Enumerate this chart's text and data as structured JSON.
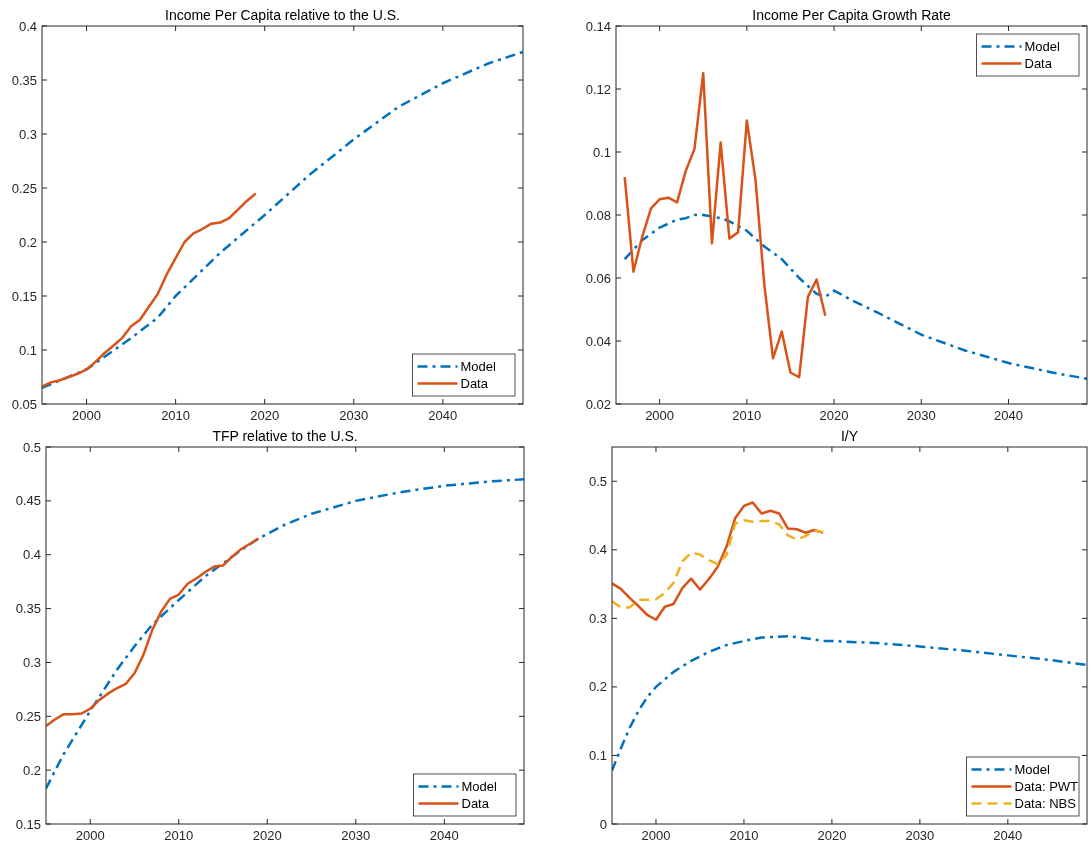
{
  "chart_data": [
    {
      "type": "line",
      "title": "Income Per Capita relative to the U.S.",
      "xlim": [
        1995,
        2049
      ],
      "xticks": [
        2000,
        2010,
        2020,
        2030,
        2040
      ],
      "ylim": [
        0.05,
        0.4
      ],
      "yticks": [
        0.05,
        0.1,
        0.15,
        0.2,
        0.25,
        0.3,
        0.35,
        0.4
      ],
      "legend": "bottom right",
      "series": [
        {
          "name": "Model",
          "color": "#0072bd",
          "line_style": "dashdot",
          "x": [
            1995,
            2000,
            2005,
            2008,
            2010,
            2015,
            2020,
            2025,
            2030,
            2035,
            2040,
            2045,
            2049
          ],
          "values": [
            0.065,
            0.082,
            0.111,
            0.13,
            0.15,
            0.19,
            0.225,
            0.262,
            0.295,
            0.325,
            0.347,
            0.365,
            0.376
          ]
        },
        {
          "name": "Data",
          "color": "#d95319",
          "line_style": "solid",
          "x": [
            1995,
            1996,
            1997,
            1998,
            1999,
            2000,
            2001,
            2002,
            2003,
            2004,
            2005,
            2006,
            2007,
            2008,
            2009,
            2010,
            2011,
            2012,
            2013,
            2014,
            2015,
            2016,
            2017,
            2018,
            2019
          ],
          "values": [
            0.066,
            0.07,
            0.072,
            0.075,
            0.078,
            0.082,
            0.089,
            0.097,
            0.104,
            0.111,
            0.122,
            0.128,
            0.14,
            0.152,
            0.17,
            0.185,
            0.2,
            0.208,
            0.212,
            0.217,
            0.218,
            0.222,
            0.23,
            0.238,
            0.245
          ]
        }
      ]
    },
    {
      "type": "line",
      "title": "Income Per Capita Growth Rate",
      "xlim": [
        1995,
        2049
      ],
      "xticks": [
        2000,
        2010,
        2020,
        2030,
        2040
      ],
      "ylim": [
        0.02,
        0.14
      ],
      "yticks": [
        0.02,
        0.04,
        0.06,
        0.08,
        0.1,
        0.12,
        0.14
      ],
      "legend": "top right",
      "series": [
        {
          "name": "Model",
          "color": "#0072bd",
          "line_style": "dashdot",
          "x": [
            1996,
            1998,
            2000,
            2002,
            2003,
            2004,
            2005,
            2007,
            2008,
            2010,
            2012,
            2014,
            2016,
            2018,
            2019,
            2020,
            2022,
            2025,
            2030,
            2035,
            2040,
            2045,
            2049
          ],
          "values": [
            0.066,
            0.072,
            0.076,
            0.0785,
            0.079,
            0.08,
            0.08,
            0.079,
            0.078,
            0.075,
            0.07,
            0.066,
            0.06,
            0.055,
            0.054,
            0.056,
            0.053,
            0.049,
            0.042,
            0.037,
            0.033,
            0.03,
            0.028
          ]
        },
        {
          "name": "Data",
          "color": "#d95319",
          "line_style": "solid",
          "x": [
            1996,
            1997,
            1998,
            1999,
            2000,
            2001,
            2002,
            2003,
            2004,
            2005,
            2006,
            2007,
            2008,
            2009,
            2010,
            2011,
            2012,
            2013,
            2014,
            2015,
            2016,
            2017,
            2018,
            2019
          ],
          "values": [
            0.092,
            0.062,
            0.073,
            0.082,
            0.085,
            0.0855,
            0.084,
            0.094,
            0.101,
            0.125,
            0.071,
            0.103,
            0.0725,
            0.0745,
            0.11,
            0.091,
            0.058,
            0.0345,
            0.043,
            0.03,
            0.0285,
            0.054,
            0.0595,
            0.048
          ]
        }
      ]
    },
    {
      "type": "line",
      "title": "TFP relative to the U.S.",
      "xlim": [
        1995,
        2049
      ],
      "xticks": [
        2000,
        2010,
        2020,
        2030,
        2040
      ],
      "ylim": [
        0.15,
        0.5
      ],
      "yticks": [
        0.15,
        0.2,
        0.25,
        0.3,
        0.35,
        0.4,
        0.45,
        0.5
      ],
      "legend": "bottom right",
      "series": [
        {
          "name": "Model",
          "color": "#0072bd",
          "line_style": "dashdot",
          "x": [
            1995,
            1997,
            2000,
            2003,
            2005,
            2007,
            2010,
            2013,
            2015,
            2017,
            2019,
            2022,
            2025,
            2030,
            2035,
            2040,
            2045,
            2049
          ],
          "values": [
            0.183,
            0.215,
            0.255,
            0.293,
            0.315,
            0.335,
            0.358,
            0.38,
            0.392,
            0.404,
            0.415,
            0.428,
            0.438,
            0.45,
            0.458,
            0.464,
            0.468,
            0.47
          ]
        },
        {
          "name": "Data",
          "color": "#d95319",
          "line_style": "solid",
          "x": [
            1995,
            1996,
            1997,
            1998,
            1999,
            2000,
            2001,
            2002,
            2003,
            2004,
            2005,
            2006,
            2007,
            2008,
            2009,
            2010,
            2011,
            2012,
            2013,
            2014,
            2015,
            2016,
            2017,
            2018,
            2019
          ],
          "values": [
            0.241,
            0.247,
            0.252,
            0.252,
            0.2525,
            0.257,
            0.265,
            0.271,
            0.276,
            0.28,
            0.29,
            0.307,
            0.33,
            0.347,
            0.359,
            0.363,
            0.373,
            0.378,
            0.384,
            0.389,
            0.39,
            0.398,
            0.405,
            0.41,
            0.415
          ]
        }
      ]
    },
    {
      "type": "line",
      "title": "I/Y",
      "xlim": [
        1995,
        2049
      ],
      "xticks": [
        2000,
        2010,
        2020,
        2030,
        2040
      ],
      "ylim": [
        0,
        0.55
      ],
      "yticks": [
        0,
        0.1,
        0.2,
        0.3,
        0.4,
        0.5
      ],
      "legend": "bottom right",
      "series": [
        {
          "name": "Model",
          "color": "#0072bd",
          "line_style": "dashdot",
          "x": [
            1995,
            1996,
            1997,
            1998,
            1999,
            2000,
            2002,
            2004,
            2006,
            2008,
            2010,
            2012,
            2015,
            2017,
            2019,
            2020,
            2025,
            2030,
            2035,
            2040,
            2045,
            2049
          ],
          "values": [
            0.078,
            0.11,
            0.14,
            0.165,
            0.185,
            0.2,
            0.222,
            0.238,
            0.251,
            0.261,
            0.267,
            0.272,
            0.274,
            0.271,
            0.267,
            0.267,
            0.264,
            0.259,
            0.253,
            0.246,
            0.239,
            0.232
          ]
        },
        {
          "name": "Data: PWT",
          "color": "#d95319",
          "line_style": "solid",
          "x": [
            1995,
            1996,
            1997,
            1998,
            1999,
            2000,
            2001,
            2002,
            2003,
            2004,
            2005,
            2006,
            2007,
            2008,
            2009,
            2010,
            2011,
            2012,
            2013,
            2014,
            2015,
            2016,
            2017,
            2018,
            2019
          ],
          "values": [
            0.351,
            0.343,
            0.33,
            0.318,
            0.305,
            0.298,
            0.317,
            0.321,
            0.344,
            0.358,
            0.342,
            0.357,
            0.375,
            0.404,
            0.446,
            0.464,
            0.469,
            0.453,
            0.457,
            0.453,
            0.431,
            0.43,
            0.425,
            0.429,
            0.425
          ]
        },
        {
          "name": "Data: NBS",
          "color": "#edb120",
          "line_style": "dashed",
          "x": [
            1995,
            1996,
            1997,
            1998,
            1999,
            2000,
            2001,
            2002,
            2003,
            2004,
            2005,
            2006,
            2007,
            2008,
            2009,
            2010,
            2011,
            2012,
            2013,
            2014,
            2015,
            2016,
            2017,
            2018,
            2019
          ],
          "values": [
            0.325,
            0.316,
            0.316,
            0.327,
            0.327,
            0.328,
            0.337,
            0.352,
            0.383,
            0.396,
            0.393,
            0.385,
            0.379,
            0.392,
            0.438,
            0.443,
            0.441,
            0.442,
            0.442,
            0.437,
            0.421,
            0.415,
            0.42,
            0.428,
            0.426
          ]
        }
      ]
    }
  ]
}
